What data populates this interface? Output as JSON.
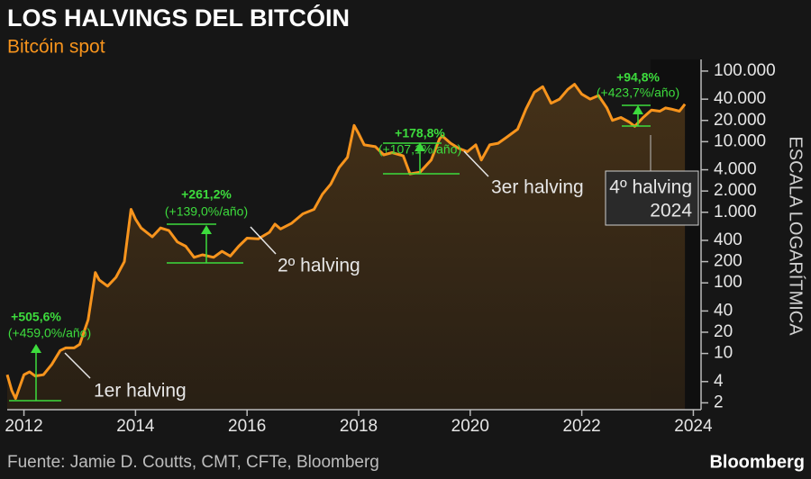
{
  "chart_data": {
    "type": "line",
    "title": "LOS HALVINGS DEL BITCÓIN",
    "subtitle": "Bitcóin spot",
    "y_label": "ESCALA LOGARÍTMICA",
    "source": "Fuente: Jamie D. Coutts, CMT, CFTe, Bloomberg",
    "brand": "Bloomberg",
    "color": "#f7941d",
    "log_scale": true,
    "x": [
      2011.7,
      2011.78,
      2011.85,
      2011.9,
      2012.0,
      2012.1,
      2012.2,
      2012.35,
      2012.5,
      2012.65,
      2012.75,
      2012.9,
      2013.0,
      2013.15,
      2013.28,
      2013.35,
      2013.5,
      2013.65,
      2013.8,
      2013.92,
      2014.0,
      2014.1,
      2014.3,
      2014.45,
      2014.6,
      2014.75,
      2014.9,
      2015.05,
      2015.2,
      2015.4,
      2015.55,
      2015.7,
      2015.85,
      2016.0,
      2016.2,
      2016.4,
      2016.5,
      2016.6,
      2016.8,
      2017.0,
      2017.2,
      2017.35,
      2017.5,
      2017.65,
      2017.8,
      2017.92,
      2018.0,
      2018.1,
      2018.3,
      2018.45,
      2018.6,
      2018.8,
      2018.92,
      2019.1,
      2019.3,
      2019.45,
      2019.5,
      2019.65,
      2019.8,
      2019.95,
      2020.1,
      2020.2,
      2020.35,
      2020.5,
      2020.65,
      2020.85,
      2021.0,
      2021.15,
      2021.3,
      2021.45,
      2021.6,
      2021.75,
      2021.87,
      2022.0,
      2022.15,
      2022.3,
      2022.45,
      2022.55,
      2022.7,
      2022.85,
      2022.95,
      2023.1,
      2023.25,
      2023.4,
      2023.5,
      2023.6,
      2023.75,
      2023.85
    ],
    "values": [
      5,
      3,
      2.3,
      3,
      5,
      5.5,
      4.8,
      5,
      7,
      11,
      12,
      12,
      13.5,
      30,
      140,
      110,
      90,
      120,
      200,
      1100,
      800,
      600,
      450,
      600,
      550,
      380,
      330,
      230,
      250,
      230,
      280,
      240,
      330,
      430,
      420,
      520,
      680,
      580,
      700,
      950,
      1100,
      1800,
      2500,
      4300,
      6000,
      17000,
      13000,
      9000,
      8500,
      6500,
      7000,
      6300,
      3500,
      3700,
      5500,
      11000,
      12000,
      9500,
      8000,
      7200,
      9000,
      5500,
      9000,
      9500,
      11500,
      15000,
      29000,
      50000,
      60000,
      35000,
      40000,
      55000,
      65000,
      47000,
      40000,
      45000,
      30000,
      20000,
      22000,
      19000,
      16500,
      22000,
      28000,
      27000,
      30000,
      29000,
      27000,
      34000
    ],
    "xlim": [
      2011.7,
      2024.3
    ],
    "xticks": [
      2012,
      2014,
      2016,
      2018,
      2020,
      2022,
      2024
    ],
    "ylim": [
      1.6,
      130000
    ],
    "yticks": [
      2,
      4,
      10,
      20,
      40,
      100,
      200,
      400,
      {
        "value": 1000,
        "label": "1.000"
      },
      {
        "value": 2000,
        "label": "2.000"
      },
      {
        "value": 4000,
        "label": "4.000"
      },
      {
        "value": 10000,
        "label": "10.000"
      },
      {
        "value": 20000,
        "label": "20.000"
      },
      {
        "value": 40000,
        "label": "40.000"
      },
      {
        "value": 100000,
        "label": "100.000"
      }
    ],
    "halvings": [
      "1er halving",
      "2º halving",
      "3er halving"
    ],
    "next_halving": [
      "4º halving",
      "2024"
    ],
    "gains": [
      {
        "total": "+505,6%",
        "annual": "(+459,0%/año)"
      },
      {
        "total": "+261,2%",
        "annual": "(+139,0%/año)"
      },
      {
        "total": "+178,8%",
        "annual": "(+107,1%/año)"
      },
      {
        "total": "+94,8%",
        "annual": "(+423,7%/año)"
      }
    ]
  }
}
